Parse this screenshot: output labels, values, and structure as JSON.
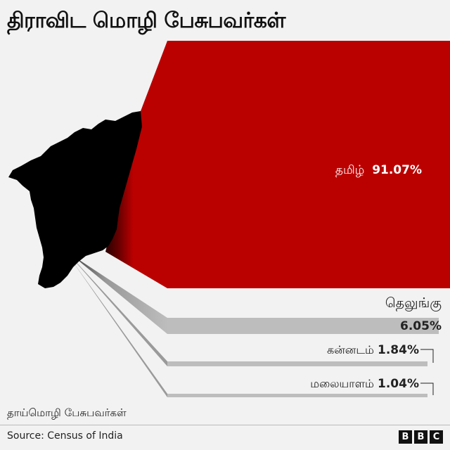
{
  "title": "திராவிட மொழி பேசுபவர்கள்",
  "footnote": "தாய்மொழி பேசுபவர்கள்",
  "source": "Source: Census of India",
  "brand": [
    "B",
    "B",
    "C"
  ],
  "colors": {
    "tamil": "#bb0000",
    "telugu": "#bdbdbd",
    "kannada": "#bdbdbd",
    "malayalam": "#bdbdbd",
    "map": "#000000",
    "background": "#f2f2f2"
  },
  "chart_data": {
    "type": "bar",
    "title": "திராவிட மொழி பேசுபவர்கள்",
    "categories": [
      "தமிழ்",
      "தெலுங்கு",
      "கன்னடம்",
      "மலையாளம்"
    ],
    "values": [
      91.07,
      6.05,
      1.84,
      1.04
    ],
    "value_labels": [
      "91.07%",
      "6.05%",
      "1.84%",
      "1.04%"
    ],
    "unit": "%",
    "xlabel": "",
    "ylabel": "",
    "grid": false,
    "legend": "none"
  }
}
